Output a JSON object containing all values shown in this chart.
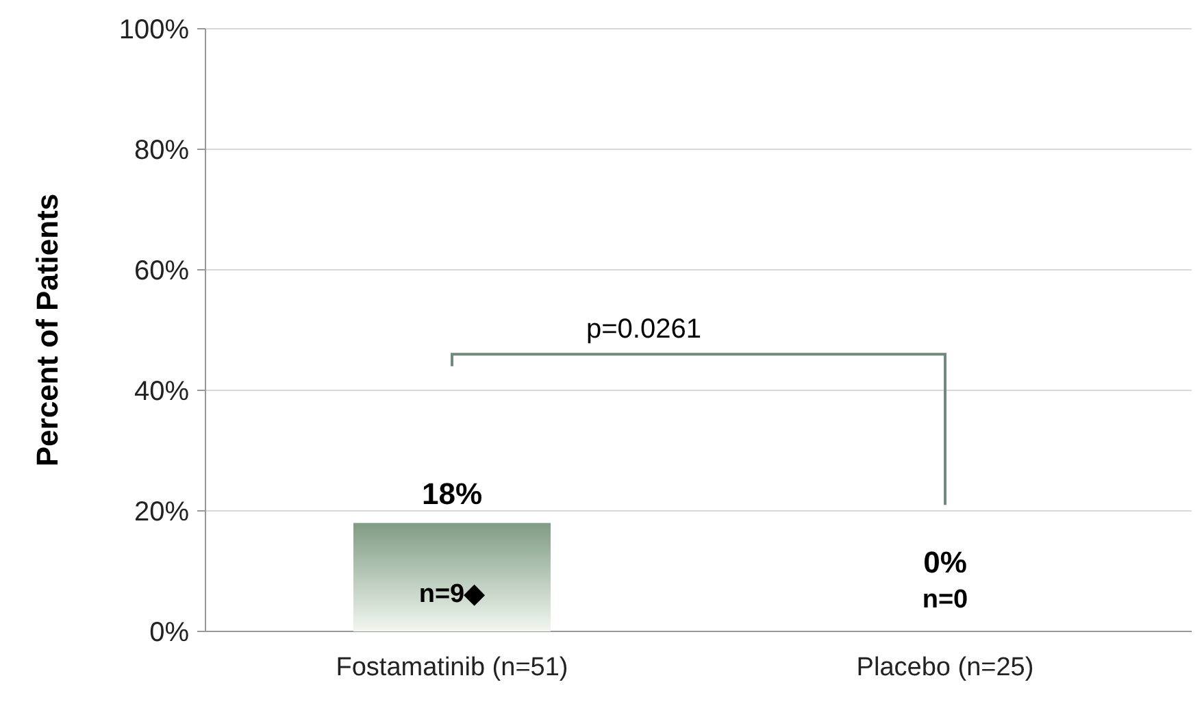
{
  "chart_data": {
    "type": "bar",
    "ylabel": "Percent of Patients",
    "categories": [
      "Fostamatinib (n=51)",
      "Placebo (n=25)"
    ],
    "values": [
      18,
      0
    ],
    "color": "#7f9c84",
    "value_labels": [
      "18%",
      "0%"
    ],
    "ylim": [
      0,
      100
    ],
    "yticks": [
      {
        "value": 0,
        "label": "0%"
      },
      {
        "value": 20,
        "label": "20%"
      },
      {
        "value": 40,
        "label": "40%"
      },
      {
        "value": 60,
        "label": "60%"
      },
      {
        "value": 80,
        "label": "80%"
      },
      {
        "value": 100,
        "label": "100%"
      }
    ],
    "grid": "y",
    "annotations": [
      "p=0.0261",
      "n=9◆",
      "n=0"
    ]
  }
}
